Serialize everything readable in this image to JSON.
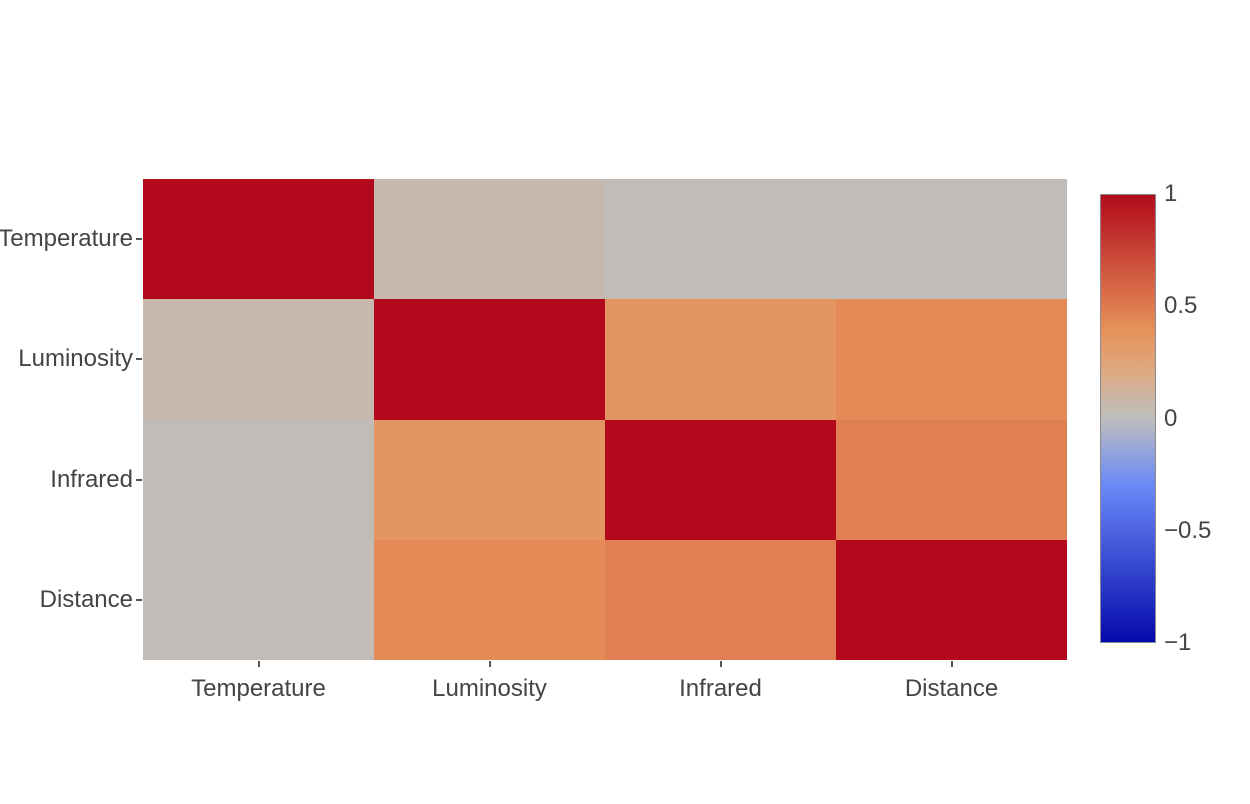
{
  "figure": {
    "kind": "correlation-heatmap",
    "background_color": "#ffffff",
    "axis_text_color": "#444444"
  },
  "chart_data": {
    "type": "heatmap",
    "title": "",
    "xlabel": "",
    "ylabel": "",
    "x_categories": [
      "Temperature",
      "Luminosity",
      "Infrared",
      "Distance"
    ],
    "y_categories": [
      "Temperature",
      "Luminosity",
      "Infrared",
      "Distance"
    ],
    "z": [
      [
        1.0,
        0.06,
        0.02,
        0.02
      ],
      [
        0.06,
        1.0,
        0.36,
        0.43
      ],
      [
        0.02,
        0.36,
        1.0,
        0.48
      ],
      [
        0.02,
        0.43,
        0.48,
        1.0
      ]
    ],
    "zmin": -1,
    "zmax": 1,
    "grid": false,
    "cell_gap": 0,
    "colorscale_name": "RdBu",
    "colorscale": [
      {
        "pos": 0.0,
        "rgb": [
          5,
          10,
          172
        ],
        "hex": "#050aac"
      },
      {
        "pos": 0.35,
        "rgb": [
          106,
          137,
          247
        ],
        "hex": "#6a89f7"
      },
      {
        "pos": 0.5,
        "rgb": [
          190,
          190,
          190
        ],
        "hex": "#bebebe"
      },
      {
        "pos": 0.6,
        "rgb": [
          220,
          170,
          132
        ],
        "hex": "#dcaa84"
      },
      {
        "pos": 0.7,
        "rgb": [
          230,
          145,
          90
        ],
        "hex": "#e6915a"
      },
      {
        "pos": 1.0,
        "rgb": [
          178,
          10,
          28
        ],
        "hex": "#b20a1c"
      }
    ],
    "diagonal_color": "#b20a1c",
    "colorbar": {
      "position": "right",
      "tick_labels": [
        "1",
        "0.5",
        "0",
        "−0.5",
        "−1"
      ],
      "tick_values": [
        1,
        0.5,
        0,
        -0.5,
        -1
      ]
    }
  }
}
